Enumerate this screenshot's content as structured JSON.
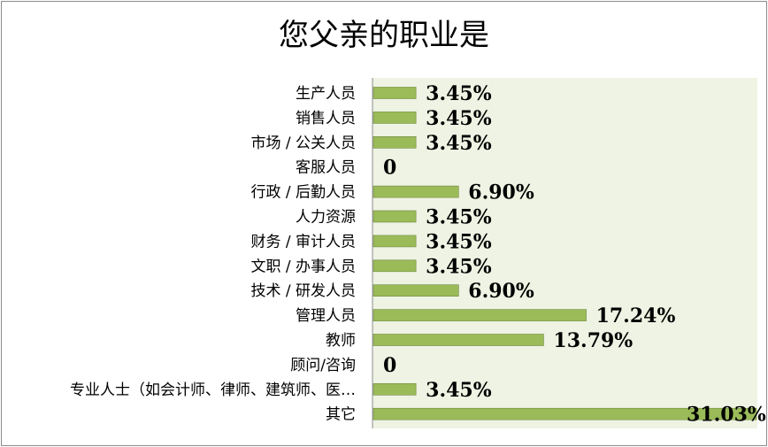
{
  "chart_data": {
    "type": "bar",
    "orientation": "horizontal",
    "title": "您父亲的职业是",
    "categories": [
      "生产人员",
      "销售人员",
      "市场 / 公关人员",
      "客服人员",
      "行政 / 后勤人员",
      "人力资源",
      "财务 / 审计人员",
      "文职 / 办事人员",
      "技术 / 研发人员",
      "管理人员",
      "教师",
      "顾问/咨询",
      "专业人士（如会计师、律师、建筑师、医…",
      "其它"
    ],
    "values": [
      3.45,
      3.45,
      3.45,
      0,
      6.9,
      3.45,
      3.45,
      3.45,
      6.9,
      17.24,
      13.79,
      0,
      3.45,
      31.03
    ],
    "value_labels": [
      "3.45%",
      "3.45%",
      "3.45%",
      "0",
      "6.90%",
      "3.45%",
      "3.45%",
      "3.45%",
      "6.90%",
      "17.24%",
      "13.79%",
      "0",
      "3.45%",
      "31.03%"
    ],
    "xlim": [
      0,
      31.03
    ],
    "grid": false,
    "legend": "none",
    "colors": {
      "bar": "#9bbb59",
      "bar_border": "#71893f",
      "plot_bg": "#eef3e3",
      "axis": "#8c8c8c"
    }
  }
}
